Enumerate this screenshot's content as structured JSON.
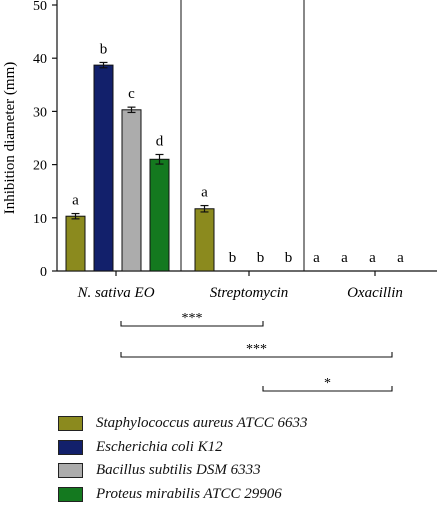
{
  "chart_data": {
    "type": "bar",
    "ylabel": "Inhibition diameter (mm)",
    "ylim": [
      0,
      50
    ],
    "yticks": [
      "0",
      "10",
      "20",
      "30",
      "40",
      "50"
    ],
    "grid": false,
    "legend_position": "bottom",
    "categories": [
      "N. sativa EO",
      "Streptomycin",
      "Oxacillin"
    ],
    "series": [
      {
        "name": "Staphylococcus aureus ATCC 6633",
        "color": "#8b8a1e",
        "values": [
          10.3,
          11.7,
          0
        ],
        "errors": [
          0.5,
          0.6,
          0
        ],
        "letters": [
          "a",
          "a",
          "a"
        ]
      },
      {
        "name": "Escherichia coli K12",
        "color": "#12206b",
        "values": [
          38.7,
          0,
          0
        ],
        "errors": [
          0.5,
          0,
          0
        ],
        "letters": [
          "b",
          "b",
          "a"
        ]
      },
      {
        "name": "Bacillus subtilis DSM 6333",
        "color": "#acacac",
        "values": [
          30.3,
          0,
          0
        ],
        "errors": [
          0.5,
          0,
          0
        ],
        "letters": [
          "c",
          "b",
          "a"
        ]
      },
      {
        "name": "Proteus mirabilis ATCC 29906",
        "color": "#14791f",
        "values": [
          21.0,
          0,
          0
        ],
        "errors": [
          0.9,
          0,
          0
        ],
        "letters": [
          "d",
          "b",
          "a"
        ]
      }
    ],
    "significance": [
      {
        "from": "N. sativa EO",
        "to": "Streptomycin",
        "label": "***"
      },
      {
        "from": "N. sativa EO",
        "to": "Oxacillin",
        "label": "***"
      },
      {
        "from": "Streptomycin",
        "to": "Oxacillin",
        "label": "*"
      }
    ]
  }
}
